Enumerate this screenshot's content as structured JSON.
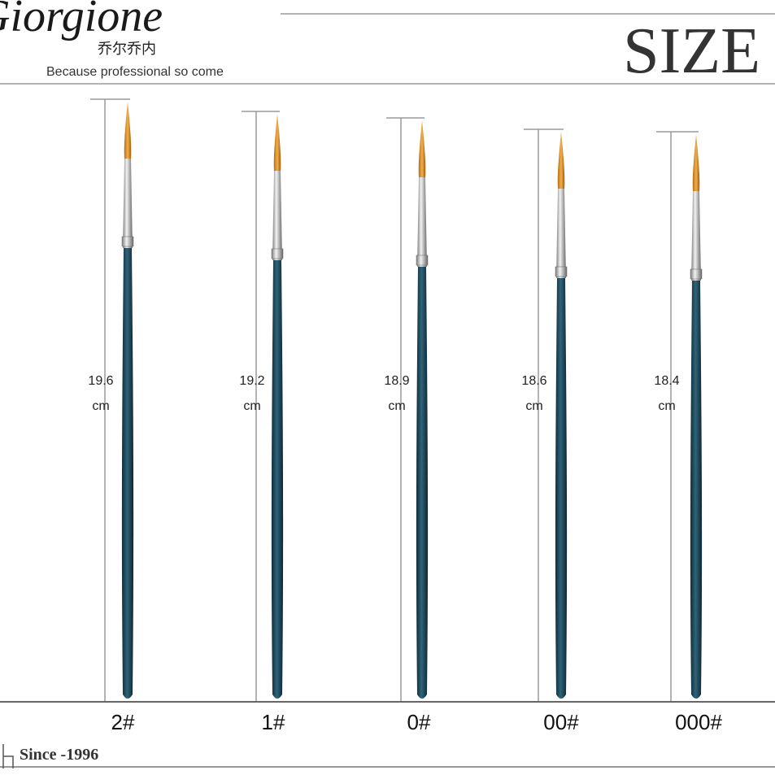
{
  "header": {
    "brand": "Giorgione",
    "brand_cn": "乔尔乔内",
    "tagline": "Because professional so come",
    "title": "SIZE"
  },
  "brushes": [
    {
      "length": "19.6",
      "unit": "cm",
      "size": "2#"
    },
    {
      "length": "19.2",
      "unit": "cm",
      "size": "1#"
    },
    {
      "length": "18.9",
      "unit": "cm",
      "size": "0#"
    },
    {
      "length": "18.6",
      "unit": "cm",
      "size": "00#"
    },
    {
      "length": "18.4",
      "unit": "cm",
      "size": "000#"
    }
  ],
  "footer": {
    "since": "Since -1996"
  }
}
